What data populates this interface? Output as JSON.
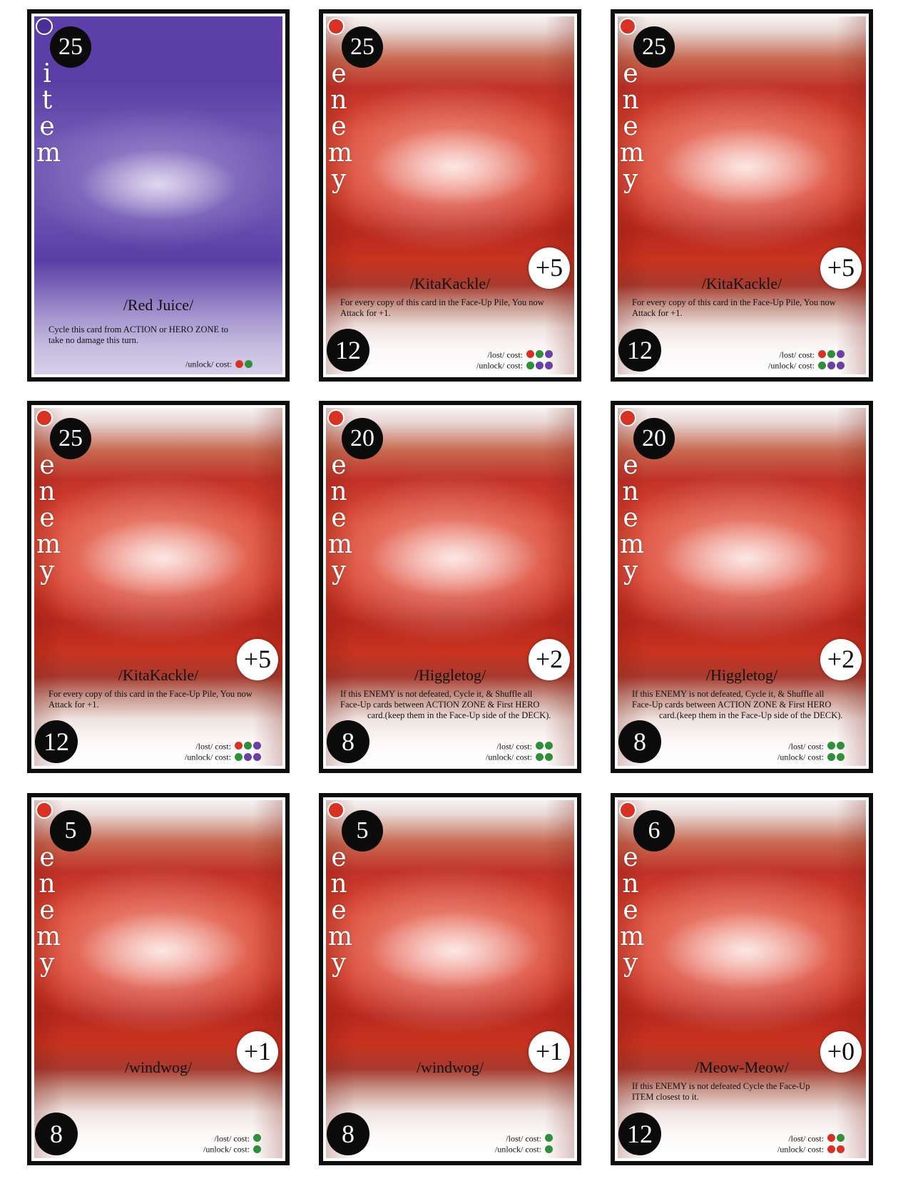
{
  "colors": {
    "red": "#d63324",
    "green": "#2f8f3a",
    "purple": "#6b3fa3"
  },
  "cards": [
    {
      "type": "item",
      "top_num": "25",
      "letters": [
        "i",
        "t",
        "e",
        "m"
      ],
      "bonus": "",
      "name": "/Red Juice/",
      "desc": [
        "Cycle this card from ACTION or HERO ZONE to",
        "take no damage this turn."
      ],
      "bottom_num": "",
      "lost_label": "",
      "lost_dots": [],
      "unlock_label": "/unlock/ cost:",
      "unlock_dots": [
        "red",
        "green"
      ]
    },
    {
      "type": "enemy",
      "top_num": "25",
      "letters": [
        "e",
        "n",
        "e",
        "m",
        "y"
      ],
      "bonus": "+5",
      "name": "/KitaKackle/",
      "desc": [
        "For every copy of this card in the Face-Up Pile, You now",
        "Attack for +1."
      ],
      "bottom_num": "12",
      "lost_label": "/lost/ cost:",
      "lost_dots": [
        "red",
        "green",
        "purple"
      ],
      "unlock_label": "/unlock/ cost:",
      "unlock_dots": [
        "green",
        "purple",
        "purple"
      ]
    },
    {
      "type": "enemy",
      "top_num": "25",
      "letters": [
        "e",
        "n",
        "e",
        "m",
        "y"
      ],
      "bonus": "+5",
      "name": "/KitaKackle/",
      "desc": [
        "For every copy of this card in the Face-Up Pile, You now",
        "Attack for +1."
      ],
      "bottom_num": "12",
      "lost_label": "/lost/ cost:",
      "lost_dots": [
        "red",
        "green",
        "purple"
      ],
      "unlock_label": "/unlock/ cost:",
      "unlock_dots": [
        "green",
        "purple",
        "purple"
      ]
    },
    {
      "type": "enemy",
      "top_num": "25",
      "letters": [
        "e",
        "n",
        "e",
        "m",
        "y"
      ],
      "bonus": "+5",
      "name": "/KitaKackle/",
      "desc": [
        "For every copy of this card in the Face-Up Pile, You now",
        "Attack for +1."
      ],
      "bottom_num": "12",
      "lost_label": "/lost/ cost:",
      "lost_dots": [
        "red",
        "green",
        "purple"
      ],
      "unlock_label": "/unlock/ cost:",
      "unlock_dots": [
        "green",
        "purple",
        "purple"
      ]
    },
    {
      "type": "enemy",
      "top_num": "20",
      "letters": [
        "e",
        "n",
        "e",
        "m",
        "y"
      ],
      "bonus": "+2",
      "name": "/Higgletog/",
      "desc": [
        "If this ENEMY is not defeated, Cycle it, & Shuffle all",
        "Face-Up cards between ACTION ZONE & First HERO",
        "card.(keep them in the Face-Up side of the DECK)."
      ],
      "bottom_num": "8",
      "lost_label": "/lost/ cost:",
      "lost_dots": [
        "green",
        "green"
      ],
      "unlock_label": "/unlock/ cost:",
      "unlock_dots": [
        "green",
        "green"
      ]
    },
    {
      "type": "enemy",
      "top_num": "20",
      "letters": [
        "e",
        "n",
        "e",
        "m",
        "y"
      ],
      "bonus": "+2",
      "name": "/Higgletog/",
      "desc": [
        "If this ENEMY is not defeated, Cycle it, & Shuffle all",
        "Face-Up cards between ACTION ZONE & First HERO",
        "card.(keep them in the Face-Up side of the DECK)."
      ],
      "bottom_num": "8",
      "lost_label": "/lost/ cost:",
      "lost_dots": [
        "green",
        "green"
      ],
      "unlock_label": "/unlock/ cost:",
      "unlock_dots": [
        "green",
        "green"
      ]
    },
    {
      "type": "enemy",
      "top_num": "5",
      "letters": [
        "e",
        "n",
        "e",
        "m",
        "y"
      ],
      "bonus": "+1",
      "name": "/windwog/",
      "desc": [],
      "bottom_num": "8",
      "lost_label": "/lost/ cost:",
      "lost_dots": [
        "green"
      ],
      "unlock_label": "/unlock/ cost:",
      "unlock_dots": [
        "green"
      ]
    },
    {
      "type": "enemy",
      "top_num": "5",
      "letters": [
        "e",
        "n",
        "e",
        "m",
        "y"
      ],
      "bonus": "+1",
      "name": "/windwog/",
      "desc": [],
      "bottom_num": "8",
      "lost_label": "/lost/ cost:",
      "lost_dots": [
        "green"
      ],
      "unlock_label": "/unlock/ cost:",
      "unlock_dots": [
        "green"
      ]
    },
    {
      "type": "enemy",
      "top_num": "6",
      "letters": [
        "e",
        "n",
        "e",
        "m",
        "y"
      ],
      "bonus": "+0",
      "name": "/Meow-Meow/",
      "desc": [
        "If this ENEMY is not defeated Cycle the Face-Up",
        "ITEM closest to it."
      ],
      "bottom_num": "12",
      "lost_label": "/lost/ cost:",
      "lost_dots": [
        "red",
        "green"
      ],
      "unlock_label": "/unlock/ cost:",
      "unlock_dots": [
        "red",
        "red"
      ]
    }
  ]
}
